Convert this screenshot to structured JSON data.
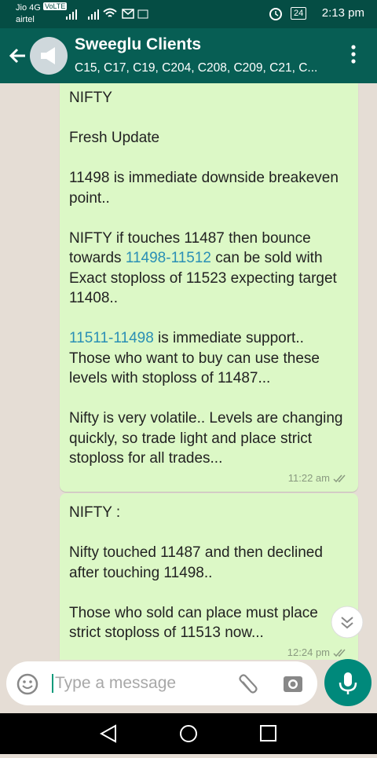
{
  "status_bar": {
    "carrier": "Jio 4G",
    "volte": "VoLTE",
    "carrier2": "airtel",
    "battery": "24",
    "time": "2:13 pm"
  },
  "header": {
    "title": "Sweeglu Clients",
    "subtitle": "C15, C17, C19, C204, C208, C209, C21, C..."
  },
  "messages": [
    {
      "paragraphs": [
        [
          {
            "text": "NIFTY"
          }
        ],
        [
          {
            "text": "Fresh Update"
          }
        ],
        [
          {
            "text": "11498 is immediate downside breakeven point.."
          }
        ],
        [
          {
            "text": "NIFTY if touches 11487 then bounce towards "
          },
          {
            "link": "11498-11512"
          },
          {
            "text": " can be sold with Exact stoploss of 11523 expecting target 11408.."
          }
        ],
        [
          {
            "link": "11511-11498"
          },
          {
            "text": " is immediate support.. Those who want to buy can use these levels with stoploss of 11487..."
          }
        ],
        [
          {
            "text": "Nifty is very volatile.. Levels are changing quickly, so trade light and place strict stoploss for all trades..."
          }
        ]
      ],
      "time": "11:22 am"
    },
    {
      "paragraphs": [
        [
          {
            "text": "NIFTY :"
          }
        ],
        [
          {
            "text": "Nifty touched 11487 and then declined after touching 11498.."
          }
        ],
        [
          {
            "text": "Those who sold can place must place strict stoploss of 11513 now..."
          }
        ]
      ],
      "time": "12:24 pm"
    }
  ],
  "composer": {
    "placeholder": "Type a message"
  }
}
